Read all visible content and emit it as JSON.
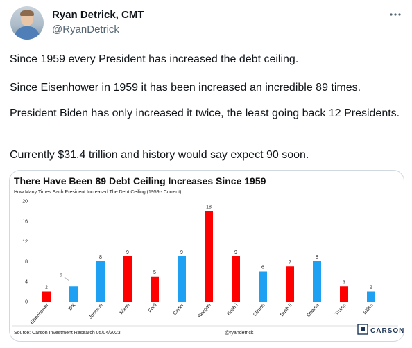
{
  "author": {
    "name": "Ryan Detrick, CMT",
    "handle": "@RyanDetrick"
  },
  "tweet": {
    "paragraphs": [
      "Since 1959 every President has increased the debt ceiling.",
      "Since Eisenhower in 1959 it has been increased an incredible 89 times.",
      "President Biden has only increased it twice, the least going back 12 Presidents.",
      "Currently $31.4 trillion and history would say expect 90 soon."
    ]
  },
  "icons": {
    "avatar": "avatar",
    "more": "more-icon"
  },
  "chart_data": {
    "type": "bar",
    "title": "There Have Been 89 Debt Ceiling Increases Since 1959",
    "subtitle": "How Many Times Each President Increased The Debt Ceiling (1959 - Current)",
    "categories": [
      "Eisenhower",
      "JFK",
      "Johnson",
      "Nixon",
      "Ford",
      "Carter",
      "Reagan",
      "Bush I",
      "Clinton",
      "Bush II",
      "Obama",
      "Trump",
      "Biden"
    ],
    "values": [
      2,
      3,
      8,
      9,
      5,
      9,
      18,
      9,
      6,
      7,
      8,
      3,
      2
    ],
    "colors": [
      "#ff0000",
      "#1ea1f2",
      "#1ea1f2",
      "#ff0000",
      "#ff0000",
      "#1ea1f2",
      "#ff0000",
      "#ff0000",
      "#1ea1f2",
      "#ff0000",
      "#1ea1f2",
      "#ff0000",
      "#1ea1f2"
    ],
    "yticks": [
      0,
      4,
      8,
      12,
      16,
      20
    ],
    "ylim": [
      0,
      20
    ],
    "source": "Source: Carson Investment Research 05/04/2023",
    "watermark": "@ryandetrick",
    "brand": "CARSON",
    "grid": false
  }
}
